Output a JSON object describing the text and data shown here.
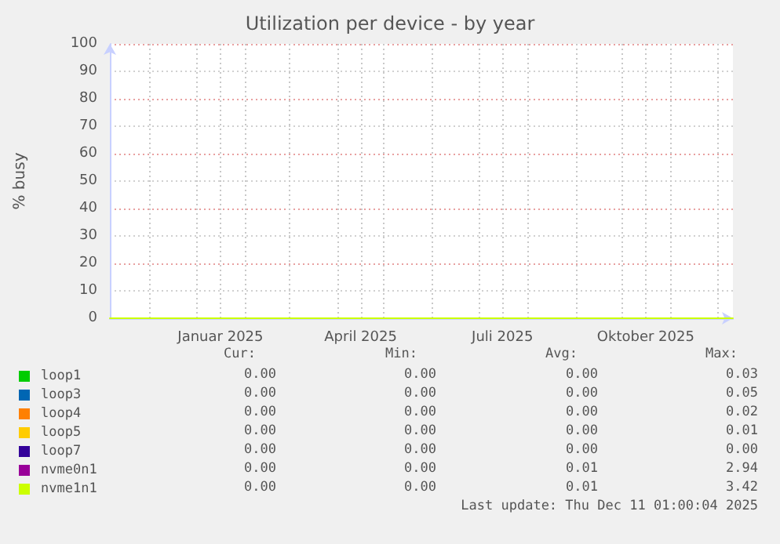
{
  "chart_data": {
    "type": "line",
    "title": "Utilization per device - by year",
    "ylabel": "% busy",
    "x": [
      "2024-11-06",
      "2025-01-01",
      "2025-03-01",
      "2025-05-01",
      "2025-07-01",
      "2025-09-01",
      "2025-11-01",
      "2025-12-11"
    ],
    "series": [
      {
        "name": "loop1",
        "color": "#00cc00",
        "values": [
          null,
          null,
          null,
          null,
          null,
          null,
          null,
          null
        ]
      },
      {
        "name": "loop3",
        "color": "#0066b3",
        "values": [
          null,
          null,
          null,
          null,
          null,
          null,
          null,
          null
        ]
      },
      {
        "name": "loop4",
        "color": "#ff8000",
        "values": [
          null,
          null,
          null,
          null,
          null,
          null,
          null,
          null
        ]
      },
      {
        "name": "loop5",
        "color": "#ffcc00",
        "values": [
          null,
          null,
          null,
          null,
          null,
          null,
          null,
          null
        ]
      },
      {
        "name": "loop7",
        "color": "#330099",
        "values": [
          null,
          null,
          null,
          null,
          null,
          null,
          null,
          null
        ]
      },
      {
        "name": "nvme0n1",
        "color": "#990099",
        "values": [
          null,
          null,
          null,
          null,
          null,
          null,
          null,
          null
        ]
      },
      {
        "name": "nvme1n1",
        "color": "#ccff00",
        "values": [
          0,
          0,
          0,
          0,
          0,
          0,
          0,
          0
        ]
      }
    ],
    "xlim": [
      "2024-11-06",
      "2025-12-11"
    ],
    "xticks": [
      {
        "value": "2024-12-01",
        "label": null
      },
      {
        "value": "2025-01-01",
        "label": null
      },
      {
        "value": "2025-01-16",
        "label": "Januar 2025"
      },
      {
        "value": "2025-02-01",
        "label": null
      },
      {
        "value": "2025-03-01",
        "label": null
      },
      {
        "value": "2025-04-01",
        "label": null
      },
      {
        "value": "2025-04-16",
        "label": "April 2025"
      },
      {
        "value": "2025-05-01",
        "label": null
      },
      {
        "value": "2025-06-01",
        "label": null
      },
      {
        "value": "2025-07-01",
        "label": null
      },
      {
        "value": "2025-07-16",
        "label": "Juli 2025"
      },
      {
        "value": "2025-08-01",
        "label": null
      },
      {
        "value": "2025-09-01",
        "label": null
      },
      {
        "value": "2025-10-01",
        "label": null
      },
      {
        "value": "2025-10-16",
        "label": "Oktober 2025"
      },
      {
        "value": "2025-11-01",
        "label": null
      },
      {
        "value": "2025-12-01",
        "label": null
      }
    ],
    "ylim": [
      0,
      100
    ],
    "yticks": [
      0,
      10,
      20,
      30,
      40,
      50,
      60,
      70,
      80,
      90,
      100
    ],
    "grid": true,
    "legend": "bottom",
    "marker": "none",
    "line_style": "solid",
    "annotations": [
      "Cur:",
      "Min:",
      "Avg:",
      "Max:",
      "0.00",
      "0.00",
      "0.00",
      "0.03",
      "0.00",
      "0.00",
      "0.00",
      "0.05",
      "0.00",
      "0.00",
      "0.00",
      "0.02",
      "0.00",
      "0.00",
      "0.00",
      "0.01",
      "0.00",
      "0.00",
      "0.00",
      "0.00",
      "0.00",
      "0.00",
      "0.01",
      "2.94",
      "0.00",
      "0.00",
      "0.01",
      "3.42",
      "Last update: Thu Dec 11 01:00:04 2025"
    ]
  }
}
